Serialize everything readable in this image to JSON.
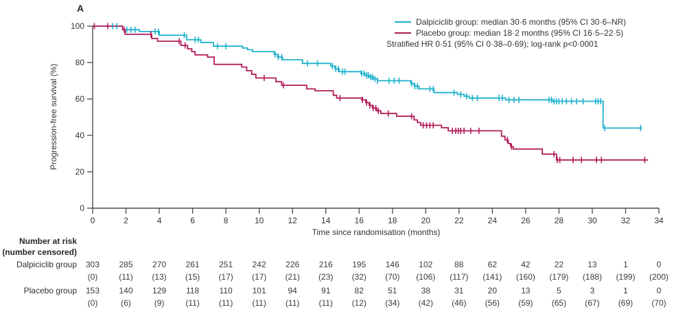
{
  "panel_label": "A",
  "colors": {
    "dalpiciclib": "#1fb1cd",
    "placebo": "#b11b58",
    "axis": "#4a4a4a",
    "text": "#333333"
  },
  "legend": {
    "position": "top-right",
    "items": [
      {
        "series": "Dalpiciclib group",
        "label": "Dalpiciclib group: median 30·6 months (95% CI 30·6–NR)"
      },
      {
        "series": "Placebo group",
        "label": "Placebo group: median 18·2 months (95% CI 16·5–22·5)"
      }
    ],
    "note": "Stratified HR 0·51 (95% CI 0·38–0·69); log-rank p<0·0001"
  },
  "chart_data": {
    "type": "line",
    "subtype": "kaplan-meier-step",
    "title": "",
    "xlabel": "Time since randomisation (months)",
    "ylabel": "Progression-free survival (%)",
    "xlim": [
      0,
      34
    ],
    "ylim": [
      0,
      100
    ],
    "xticks": [
      0,
      2,
      4,
      6,
      8,
      10,
      12,
      14,
      16,
      18,
      20,
      22,
      24,
      26,
      28,
      30,
      32,
      34
    ],
    "yticks": [
      0,
      20,
      40,
      60,
      80,
      100
    ],
    "grid": false,
    "series": [
      {
        "name": "Dalpiciclib group",
        "color_key": "dalpiciclib",
        "start": [
          0,
          100
        ],
        "end_time": 33.0,
        "steps": [
          [
            1.8,
            98
          ],
          [
            2.8,
            97
          ],
          [
            4.0,
            95
          ],
          [
            5.65,
            92.5
          ],
          [
            6.5,
            91
          ],
          [
            7.25,
            89
          ],
          [
            9.0,
            88
          ],
          [
            9.3,
            87
          ],
          [
            9.6,
            86
          ],
          [
            10.9,
            84.5
          ],
          [
            11.1,
            83
          ],
          [
            11.4,
            81.5
          ],
          [
            12.6,
            79.5
          ],
          [
            14.3,
            78
          ],
          [
            14.55,
            76.5
          ],
          [
            14.8,
            75
          ],
          [
            16.1,
            74
          ],
          [
            16.35,
            73
          ],
          [
            16.6,
            72
          ],
          [
            16.85,
            71
          ],
          [
            17.1,
            70
          ],
          [
            19.1,
            68.5
          ],
          [
            19.3,
            67
          ],
          [
            19.6,
            65.5
          ],
          [
            20.5,
            63.5
          ],
          [
            21.9,
            62.5
          ],
          [
            22.3,
            61.5
          ],
          [
            22.6,
            60.5
          ],
          [
            24.8,
            59.5
          ],
          [
            27.6,
            58.7
          ],
          [
            30.65,
            44
          ]
        ],
        "censor_times": [
          1.2,
          1.45,
          2.05,
          2.3,
          2.55,
          3.75,
          3.95,
          5.5,
          6.15,
          6.35,
          7.5,
          8.0,
          10.95,
          11.15,
          11.35,
          12.9,
          13.5,
          14.4,
          14.6,
          14.75,
          15.0,
          15.15,
          16.15,
          16.3,
          16.45,
          16.55,
          16.7,
          16.8,
          16.95,
          17.1,
          17.8,
          18.1,
          18.4,
          19.15,
          19.35,
          19.5,
          20.25,
          20.45,
          21.7,
          22.1,
          22.45,
          22.8,
          23.1,
          24.4,
          24.6,
          25.0,
          25.3,
          25.6,
          27.4,
          27.55,
          27.7,
          27.85,
          28.0,
          28.2,
          28.45,
          28.75,
          29.05,
          29.45,
          30.2,
          30.35,
          30.5,
          30.75,
          32.9
        ]
      },
      {
        "name": "Placebo group",
        "color_key": "placebo",
        "start": [
          0,
          100
        ],
        "end_time": 33.35,
        "steps": [
          [
            1.8,
            98
          ],
          [
            1.95,
            95.5
          ],
          [
            3.55,
            93.2
          ],
          [
            3.9,
            91.7
          ],
          [
            5.3,
            89.4
          ],
          [
            5.7,
            87.5
          ],
          [
            5.95,
            86
          ],
          [
            6.15,
            84.2
          ],
          [
            6.9,
            83
          ],
          [
            7.3,
            79
          ],
          [
            8.95,
            77.5
          ],
          [
            9.25,
            75.5
          ],
          [
            9.55,
            73.5
          ],
          [
            9.8,
            71.5
          ],
          [
            11.0,
            69.5
          ],
          [
            11.35,
            67.5
          ],
          [
            12.85,
            65.5
          ],
          [
            13.35,
            64.5
          ],
          [
            14.45,
            62
          ],
          [
            14.65,
            60.5
          ],
          [
            16.15,
            59.5
          ],
          [
            16.4,
            58
          ],
          [
            16.6,
            56.5
          ],
          [
            16.8,
            55
          ],
          [
            17.05,
            53.5
          ],
          [
            17.3,
            52
          ],
          [
            18.25,
            50.5
          ],
          [
            19.3,
            48.5
          ],
          [
            19.5,
            47
          ],
          [
            19.7,
            45.5
          ],
          [
            20.95,
            44.2
          ],
          [
            21.35,
            42.5
          ],
          [
            24.55,
            39.5
          ],
          [
            24.75,
            37.5
          ],
          [
            24.95,
            35.5
          ],
          [
            25.1,
            33.8
          ],
          [
            25.25,
            32.5
          ],
          [
            27.0,
            29.7
          ],
          [
            27.85,
            26.5
          ]
        ],
        "censor_times": [
          0.1,
          0.9,
          1.9,
          3.5,
          5.2,
          5.55,
          10.3,
          11.45,
          14.85,
          16.2,
          16.45,
          16.65,
          16.85,
          17.0,
          17.15,
          17.75,
          19.15,
          19.85,
          20.05,
          20.25,
          20.45,
          21.6,
          21.8,
          21.95,
          22.1,
          22.3,
          22.7,
          23.2,
          24.9,
          25.15,
          27.7,
          27.9,
          28.05,
          28.85,
          29.35,
          30.25,
          30.55,
          33.15
        ]
      }
    ]
  },
  "risk_table": {
    "header_line1": "Number at risk",
    "header_line2": "(number censored)",
    "timepoints": [
      0,
      2,
      4,
      6,
      8,
      10,
      12,
      14,
      16,
      18,
      20,
      22,
      24,
      26,
      28,
      30,
      32,
      34
    ],
    "rows": [
      {
        "label": "Dalpiciclib group",
        "at_risk": [
          "303",
          "285",
          "270",
          "261",
          "251",
          "242",
          "226",
          "216",
          "195",
          "146",
          "102",
          "88",
          "62",
          "42",
          "22",
          "13",
          "1",
          "0"
        ],
        "censored": [
          "(0)",
          "(11)",
          "(13)",
          "(15)",
          "(17)",
          "(17)",
          "(21)",
          "(23)",
          "(32)",
          "(70)",
          "(106)",
          "(117)",
          "(141)",
          "(160)",
          "(179)",
          "(188)",
          "(199)",
          "(200)"
        ]
      },
      {
        "label": "Placebo group",
        "at_risk": [
          "153",
          "140",
          "129",
          "118",
          "110",
          "101",
          "94",
          "91",
          "82",
          "51",
          "38",
          "31",
          "20",
          "13",
          "5",
          "3",
          "1",
          "0"
        ],
        "censored": [
          "(0)",
          "(6)",
          "(9)",
          "(11)",
          "(11)",
          "(11)",
          "(11)",
          "(11)",
          "(12)",
          "(34)",
          "(42)",
          "(46)",
          "(56)",
          "(59)",
          "(65)",
          "(67)",
          "(69)",
          "(70)"
        ]
      }
    ]
  }
}
